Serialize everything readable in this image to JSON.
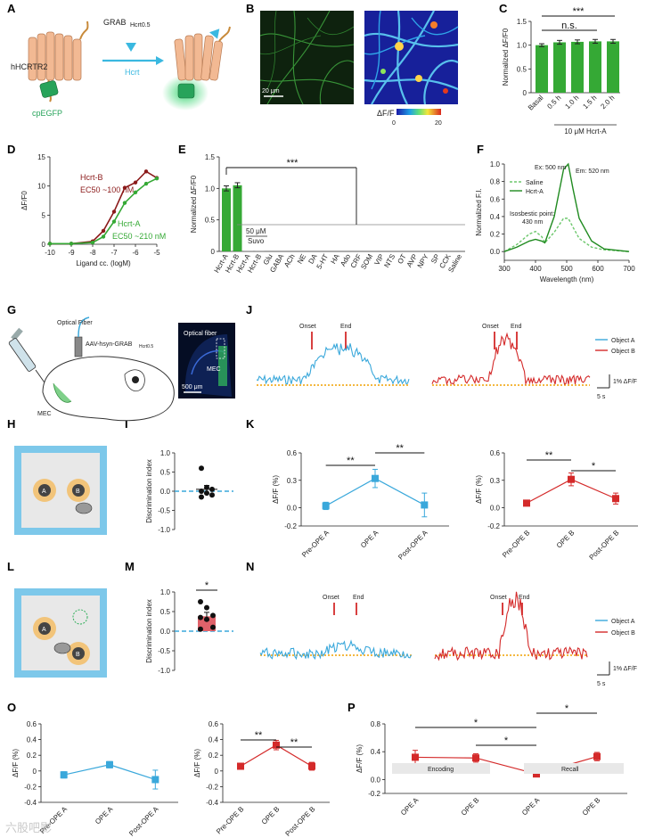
{
  "panel_letters": [
    "A",
    "B",
    "C",
    "D",
    "E",
    "F",
    "G",
    "J",
    "H",
    "I",
    "K",
    "L",
    "M",
    "N",
    "O",
    "P"
  ],
  "watermark": "六股吧影",
  "schematic_A": {
    "receptor": "hHCRTR2",
    "sensor": "GRAB",
    "sensor_sub": "Hcrt0.5",
    "ligand": "Hcrt",
    "fp": "cpEGFP"
  },
  "images_B": {
    "scale": "20 μm",
    "colorbar_label": "ΔF/F",
    "colorbar_sub": "0",
    "colorbar_min": "0",
    "colorbar_max": "20"
  },
  "schematic_G": {
    "fiber_label": "Optical Fiber",
    "virus": "AAV-hsyn-GRAB",
    "virus_sub": "Hcrt0.5",
    "region": "MEC",
    "slice_fiber": "Optical fiber",
    "slice_region": "MEC",
    "slice_scale": "500 μm"
  },
  "arena_labels": {
    "obj_a": "A",
    "obj_b": "B"
  },
  "traces": {
    "onset": "Onset",
    "end": "End",
    "scale_time": "5 s",
    "scale_amp": "1% ΔF/F",
    "legend_a": "Object A",
    "legend_b": "Object B"
  },
  "significance": {
    "triple": "***",
    "double": "**",
    "single": "*",
    "ns": "n.s."
  },
  "colors": {
    "blue": "#3aa8db",
    "red": "#d42a2a",
    "green": "#35a935",
    "darkred": "#8b1a1a",
    "baseline": "#f0a000",
    "arena_blue": "#7dc8ea",
    "object": "#f2c47a"
  },
  "chart_data": [
    {
      "panel": "C",
      "type": "bar",
      "ylabel": "Normalized ΔF/F0",
      "categories": [
        "Basal",
        "0.5 h",
        "1.0 h",
        "1.5 h",
        "2.0 h"
      ],
      "values": [
        1.0,
        1.06,
        1.07,
        1.08,
        1.08
      ],
      "errors": [
        0.03,
        0.04,
        0.04,
        0.04,
        0.04
      ],
      "ylim": [
        0,
        1.5
      ],
      "yticks": [
        "0",
        "0.5",
        "1.0",
        "1.5"
      ],
      "group_label": "10 μM Hcrt-A",
      "annotations": [
        "***",
        "n.s."
      ]
    },
    {
      "panel": "D",
      "type": "line",
      "xlabel": "Ligand cc. (logM)",
      "ylabel": "ΔF/F0",
      "xlim": [
        -10,
        -5
      ],
      "ylim": [
        0,
        15
      ],
      "xticks": [
        "-10",
        "-9",
        "-8",
        "-7",
        "-6",
        "-5"
      ],
      "yticks": [
        "0",
        "5",
        "10",
        "15"
      ],
      "series": [
        {
          "name": "Hcrt-B",
          "ec50": "EC50 ~100 nM",
          "x": [
            -10,
            -9,
            -8,
            -7.5,
            -7,
            -6.5,
            -6,
            -5.5,
            -5
          ],
          "y": [
            0.1,
            0.1,
            0.5,
            2.3,
            5.6,
            9.7,
            10.6,
            12.5,
            11.4
          ]
        },
        {
          "name": "Hcrt-A",
          "ec50": "EC50 ~210 nM",
          "x": [
            -10,
            -9,
            -8,
            -7.5,
            -7,
            -6.5,
            -6,
            -5.5,
            -5
          ],
          "y": [
            0.1,
            0.1,
            0.3,
            1.3,
            3.9,
            7.1,
            8.9,
            10.4,
            11.3
          ]
        }
      ]
    },
    {
      "panel": "E",
      "type": "bar",
      "ylabel": "Normalized ΔF/F0",
      "categories": [
        "Hcrt-A",
        "Hcrt-B",
        "Hcrt-A",
        "Hcrt-B",
        "Glu",
        "GABA",
        "ACh",
        "NE",
        "DA",
        "5-HT",
        "HA",
        "Ado",
        "CRF",
        "SOM",
        "VIP",
        "NTS",
        "OT",
        "AVP",
        "NPY",
        "SP",
        "CCK",
        "Saline"
      ],
      "values": [
        1.0,
        1.05,
        0.01,
        0.01,
        0.0,
        0.0,
        0.0,
        0.0,
        0.0,
        0.0,
        0.0,
        0.0,
        0.0,
        0.0,
        0.0,
        0.0,
        0.0,
        0.0,
        0.0,
        0.0,
        0.0,
        0.0
      ],
      "ylim": [
        0,
        1.5
      ],
      "yticks": [
        "0",
        "0.5",
        "1.0",
        "1.5"
      ],
      "inline_label": "50 μM",
      "bracket_label": "Suvo",
      "annotations": [
        "***"
      ]
    },
    {
      "panel": "F",
      "type": "line",
      "xlabel": "Wavelength (nm)",
      "ylabel": "Normalized F.I.",
      "xlim": [
        300,
        700
      ],
      "ylim": [
        -0.1,
        1.0
      ],
      "xticks": [
        "300",
        "400",
        "500",
        "600",
        "700"
      ],
      "yticks": [
        "0.0",
        "0.2",
        "0.4",
        "0.6",
        "0.8",
        "1.0"
      ],
      "series": [
        {
          "name": "Saline",
          "style": "dashed",
          "x": [
            300,
            340,
            380,
            400,
            420,
            430,
            460,
            490,
            505,
            520,
            540,
            580,
            620,
            700
          ],
          "y": [
            0.0,
            0.08,
            0.2,
            0.23,
            0.17,
            0.1,
            0.22,
            0.38,
            0.38,
            0.28,
            0.15,
            0.05,
            0.02,
            0.0
          ]
        },
        {
          "name": "Hcrt-A",
          "style": "solid",
          "x": [
            300,
            340,
            380,
            400,
            420,
            430,
            460,
            490,
            505,
            520,
            540,
            580,
            620,
            700
          ],
          "y": [
            0.0,
            0.05,
            0.12,
            0.14,
            0.12,
            0.1,
            0.4,
            0.94,
            1.0,
            0.72,
            0.38,
            0.12,
            0.03,
            0.0
          ]
        }
      ],
      "annotations": [
        "Ex: 500 nm",
        "Em: 520 nm",
        "Isosbestic point:",
        "430 nm"
      ]
    },
    {
      "panel": "I",
      "type": "scatter",
      "ylabel": "Discrimination index",
      "ylim": [
        -1.0,
        1.0
      ],
      "yticks": [
        "1.0",
        "0.5",
        "0.0",
        "-0.5",
        "-1.0"
      ],
      "values": [
        0.6,
        0.1,
        0.05,
        0.0,
        -0.05,
        -0.1,
        -0.15
      ],
      "mean": 0.05,
      "sem": 0.1
    },
    {
      "panel": "K-left",
      "type": "line",
      "ylabel": "ΔF/F (%)",
      "categories": [
        "Pre-OPE A",
        "OPE A",
        "Post-OPE A"
      ],
      "values": [
        0.02,
        0.32,
        0.03
      ],
      "errors": [
        0.04,
        0.1,
        0.13
      ],
      "ylim": [
        -0.2,
        0.6
      ],
      "yticks": [
        "0.6",
        "0.3",
        "0.0",
        "-0.2"
      ],
      "annotations": [
        "**",
        "**"
      ]
    },
    {
      "panel": "K-right",
      "type": "line",
      "ylabel": "ΔF/F (%)",
      "categories": [
        "Pre-OPE B",
        "OPE B",
        "Post-OPE B"
      ],
      "values": [
        0.05,
        0.31,
        0.1
      ],
      "errors": [
        0.02,
        0.07,
        0.06
      ],
      "ylim": [
        -0.2,
        0.6
      ],
      "yticks": [
        "0.6",
        "0.3",
        "0.0",
        "-0.2"
      ],
      "annotations": [
        "**",
        "*"
      ]
    },
    {
      "panel": "M",
      "type": "bar",
      "ylabel": "Discrimination index",
      "values": [
        0.38
      ],
      "errors": [
        0.1
      ],
      "points": [
        0.75,
        0.6,
        0.4,
        0.35,
        0.3,
        0.1,
        0.05
      ],
      "ylim": [
        -1.0,
        1.0
      ],
      "yticks": [
        "1.0",
        "0.5",
        "0.0",
        "-0.5",
        "-1.0"
      ],
      "annotations": [
        "*"
      ]
    },
    {
      "panel": "O-left",
      "type": "line",
      "ylabel": "ΔF/F (%)",
      "categories": [
        "Pre-OPE A",
        "OPE A",
        "Post-OPE A"
      ],
      "values": [
        -0.05,
        0.08,
        -0.11
      ],
      "errors": [
        0.04,
        0.04,
        0.12
      ],
      "ylim": [
        -0.4,
        0.6
      ],
      "yticks": [
        "0.6",
        "0.4",
        "0.2",
        "0",
        "-0.2",
        "-0.4"
      ]
    },
    {
      "panel": "O-right",
      "type": "line",
      "ylabel": "ΔF/F (%)",
      "categories": [
        "Pre-OPE B",
        "OPE B",
        "Post-OPE B"
      ],
      "values": [
        0.06,
        0.33,
        0.06
      ],
      "errors": [
        0.02,
        0.06,
        0.05
      ],
      "ylim": [
        -0.4,
        0.6
      ],
      "yticks": [
        "0.6",
        "0.4",
        "0.2",
        "0",
        "-0.2",
        "-0.4"
      ],
      "annotations": [
        "**",
        "**"
      ]
    },
    {
      "panel": "P",
      "type": "line",
      "ylabel": "ΔF/F (%)",
      "categories": [
        "OPE A",
        "OPE B",
        "OPE A",
        "OPE B"
      ],
      "values": [
        0.32,
        0.31,
        0.08,
        0.33
      ],
      "errors": [
        0.1,
        0.06,
        0.03,
        0.06
      ],
      "ylim": [
        -0.2,
        0.8
      ],
      "yticks": [
        "0.8",
        "0.4",
        "0.0",
        "-0.2"
      ],
      "phases": [
        "Encoding",
        "Recall"
      ],
      "annotations": [
        "*",
        "*",
        "*"
      ]
    }
  ]
}
